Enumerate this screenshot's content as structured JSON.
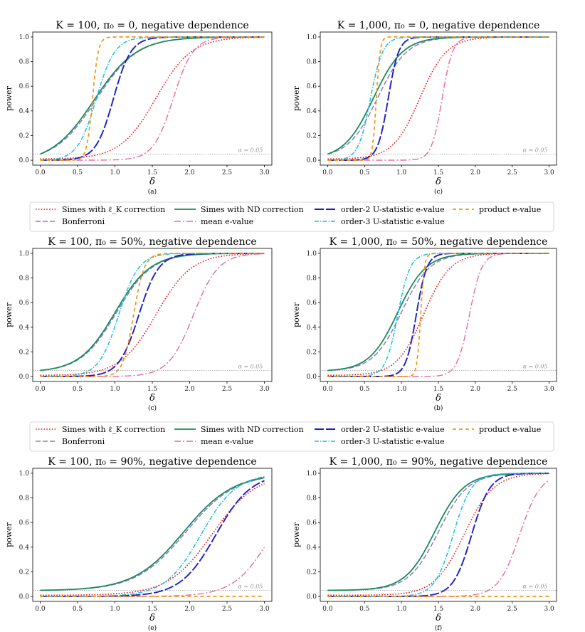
{
  "colors": {
    "simes_lk": "#e8191c",
    "bonferroni": "#8d7ac9",
    "simes_nd": "#1b8a5a",
    "mean_e": "#e46aa5",
    "u2": "#1b1fc8",
    "u3": "#19bfe0",
    "product": "#f2960f",
    "alpha_line": "#888888"
  },
  "legend": {
    "items": [
      {
        "key": "simes_lk",
        "label": "Simes with ℓ_K correction"
      },
      {
        "key": "bonferroni",
        "label": "Bonferroni"
      },
      {
        "key": "simes_nd",
        "label": "Simes with ND correction"
      },
      {
        "key": "mean_e",
        "label": "mean e-value"
      },
      {
        "key": "u2",
        "label": "order-2 U-statistic e-value"
      },
      {
        "key": "u3",
        "label": "order-3 U-statistic e-value"
      },
      {
        "key": "product",
        "label": "product e-value"
      }
    ]
  },
  "chart_data": [
    {
      "type": "line",
      "title": "K = 100,  π₀ = 0, negative dependence",
      "xlabel": "δ",
      "ylabel": "power",
      "sublabel": "(a)",
      "alpha_label": "α = 0.05",
      "xlim": [
        0,
        3
      ],
      "ylim": [
        0,
        1
      ],
      "xticks": [
        "0.0",
        "0.5",
        "1.0",
        "1.5",
        "2.0",
        "2.5",
        "3.0"
      ],
      "yticks": [
        "0.0",
        "0.2",
        "0.4",
        "0.6",
        "0.8",
        "1.0"
      ],
      "series": [
        {
          "key": "simes_lk",
          "x50": 1.55,
          "steep": 4.2,
          "base": 0.01
        },
        {
          "key": "bonferroni",
          "x50": 0.75,
          "steep": 3.6,
          "base": 0.05
        },
        {
          "key": "simes_nd",
          "x50": 0.72,
          "steep": 3.5,
          "base": 0.05
        },
        {
          "key": "mean_e",
          "x50": 1.78,
          "steep": 7.5,
          "base": 0.0
        },
        {
          "key": "u2",
          "x50": 0.98,
          "steep": 8.5,
          "base": 0.0
        },
        {
          "key": "u3",
          "x50": 0.75,
          "steep": 8.0,
          "base": 0.0
        },
        {
          "key": "product",
          "x50": 0.7,
          "steep": 26.0,
          "base": 0.0
        }
      ]
    },
    {
      "type": "line",
      "title": "K = 1,000,  π₀ = 0, negative dependence",
      "xlabel": "δ",
      "ylabel": "power",
      "sublabel": "(c)",
      "alpha_label": "α = 0.05",
      "xlim": [
        0,
        3
      ],
      "ylim": [
        0,
        1
      ],
      "xticks": [
        "0.0",
        "0.5",
        "1.0",
        "1.5",
        "2.0",
        "2.5",
        "3.0"
      ],
      "yticks": [
        "0.0",
        "0.2",
        "0.4",
        "0.6",
        "0.8",
        "1.0"
      ],
      "series": [
        {
          "key": "simes_lk",
          "x50": 1.25,
          "steep": 5.5,
          "base": 0.01
        },
        {
          "key": "bonferroni",
          "x50": 0.68,
          "steep": 5.0,
          "base": 0.05
        },
        {
          "key": "simes_nd",
          "x50": 0.62,
          "steep": 5.0,
          "base": 0.05
        },
        {
          "key": "mean_e",
          "x50": 1.55,
          "steep": 14.0,
          "base": 0.0
        },
        {
          "key": "u2",
          "x50": 0.82,
          "steep": 14.0,
          "base": 0.0
        },
        {
          "key": "u3",
          "x50": 0.58,
          "steep": 12.0,
          "base": 0.0
        },
        {
          "key": "product",
          "x50": 0.66,
          "steep": 40.0,
          "base": 0.0
        }
      ]
    },
    {
      "type": "line",
      "title": "K = 100,  π₀ = 50%, negative dependence",
      "xlabel": "δ",
      "ylabel": "power",
      "sublabel": "(c)",
      "alpha_label": "α = 0.05",
      "xlim": [
        0,
        3
      ],
      "ylim": [
        0,
        1
      ],
      "xticks": [
        "0.0",
        "0.5",
        "1.0",
        "1.5",
        "2.0",
        "2.5",
        "3.0"
      ],
      "yticks": [
        "0.0",
        "0.2",
        "0.4",
        "0.6",
        "0.8",
        "1.0"
      ],
      "series": [
        {
          "key": "simes_lk",
          "x50": 1.55,
          "steep": 4.2,
          "base": 0.01
        },
        {
          "key": "bonferroni",
          "x50": 1.02,
          "steep": 4.2,
          "base": 0.05
        },
        {
          "key": "simes_nd",
          "x50": 1.0,
          "steep": 4.2,
          "base": 0.05
        },
        {
          "key": "mean_e",
          "x50": 2.05,
          "steep": 6.0,
          "base": 0.0
        },
        {
          "key": "u2",
          "x50": 1.32,
          "steep": 7.5,
          "base": 0.0
        },
        {
          "key": "u3",
          "x50": 1.05,
          "steep": 7.5,
          "base": 0.0
        },
        {
          "key": "product",
          "x50": 1.25,
          "steep": 14.0,
          "base": 0.0
        }
      ]
    },
    {
      "type": "line",
      "title": "K = 1,000,  π₀ = 50%, negative dependence",
      "xlabel": "δ",
      "ylabel": "power",
      "sublabel": "(b)",
      "alpha_label": "α = 0.05",
      "xlim": [
        0,
        3
      ],
      "ylim": [
        0,
        1
      ],
      "xticks": [
        "0.0",
        "0.5",
        "1.0",
        "1.5",
        "2.0",
        "2.5",
        "3.0"
      ],
      "yticks": [
        "0.0",
        "0.2",
        "0.4",
        "0.6",
        "0.8",
        "1.0"
      ],
      "series": [
        {
          "key": "simes_lk",
          "x50": 1.3,
          "steep": 5.5,
          "base": 0.01
        },
        {
          "key": "bonferroni",
          "x50": 1.0,
          "steep": 5.2,
          "base": 0.05
        },
        {
          "key": "simes_nd",
          "x50": 0.95,
          "steep": 5.2,
          "base": 0.05
        },
        {
          "key": "mean_e",
          "x50": 1.92,
          "steep": 12.0,
          "base": 0.0
        },
        {
          "key": "u2",
          "x50": 1.2,
          "steep": 14.0,
          "base": 0.0
        },
        {
          "key": "u3",
          "x50": 0.95,
          "steep": 12.0,
          "base": 0.0
        },
        {
          "key": "product",
          "x50": 1.26,
          "steep": 40.0,
          "base": 0.0
        }
      ]
    },
    {
      "type": "line",
      "title": "K = 100,  π₀ = 90%, negative dependence",
      "xlabel": "δ",
      "ylabel": "power",
      "sublabel": "(e)",
      "alpha_label": "α = 0.05",
      "xlim": [
        0,
        3
      ],
      "ylim": [
        0,
        1
      ],
      "xticks": [
        "0.0",
        "0.5",
        "1.0",
        "1.5",
        "2.0",
        "2.5",
        "3.0"
      ],
      "yticks": [
        "0.0",
        "0.2",
        "0.4",
        "0.6",
        "0.8",
        "1.0"
      ],
      "series": [
        {
          "key": "simes_lk",
          "x50": 2.3,
          "steep": 3.4,
          "base": 0.01
        },
        {
          "key": "bonferroni",
          "x50": 1.95,
          "steep": 3.0,
          "base": 0.05
        },
        {
          "key": "simes_nd",
          "x50": 1.92,
          "steep": 3.0,
          "base": 0.05
        },
        {
          "key": "mean_e",
          "x50": 3.1,
          "steep": 4.0,
          "base": 0.0
        },
        {
          "key": "u2",
          "x50": 2.35,
          "steep": 4.2,
          "base": 0.0
        },
        {
          "key": "u3",
          "x50": 2.15,
          "steep": 4.2,
          "base": 0.0
        },
        {
          "key": "product",
          "x50": 10.0,
          "steep": 1.0,
          "base": 0.0
        }
      ]
    },
    {
      "type": "line",
      "title": "K = 1,000,  π₀ = 90%, negative dependence",
      "xlabel": "δ",
      "ylabel": "power",
      "sublabel": "(f)",
      "alpha_label": "α = 0.05",
      "xlim": [
        0,
        3
      ],
      "ylim": [
        0,
        1
      ],
      "xticks": [
        "0.0",
        "0.5",
        "1.0",
        "1.5",
        "2.0",
        "2.5",
        "3.0"
      ],
      "yticks": [
        "0.0",
        "0.2",
        "0.4",
        "0.6",
        "0.8",
        "1.0"
      ],
      "series": [
        {
          "key": "simes_lk",
          "x50": 1.85,
          "steep": 5.0,
          "base": 0.01
        },
        {
          "key": "bonferroni",
          "x50": 1.5,
          "steep": 5.0,
          "base": 0.05
        },
        {
          "key": "simes_nd",
          "x50": 1.45,
          "steep": 5.0,
          "base": 0.05
        },
        {
          "key": "mean_e",
          "x50": 2.6,
          "steep": 7.0,
          "base": 0.0
        },
        {
          "key": "u2",
          "x50": 1.95,
          "steep": 8.0,
          "base": 0.0
        },
        {
          "key": "u3",
          "x50": 1.7,
          "steep": 8.0,
          "base": 0.0
        },
        {
          "key": "product",
          "x50": 10.0,
          "steep": 1.0,
          "base": 0.0
        }
      ]
    }
  ]
}
